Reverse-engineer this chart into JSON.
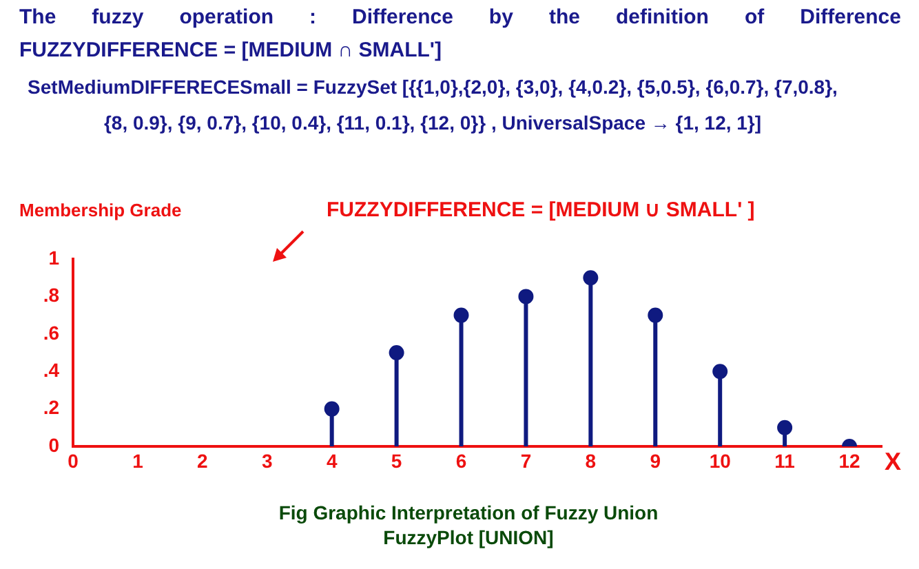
{
  "chart_data": {
    "type": "lollipop",
    "title": "FUZZYDIFFERENCE = [MEDIUM  ∪ SMALL' ]",
    "xlabel": "X",
    "ylabel": "Membership Grade",
    "annotations": [
      "The fuzzy operation : Difference by the definition of Difference",
      "FUZZYDIFFERENCE = [MEDIUM  ∩  SMALL']",
      "SetMediumDIFFERECESmall = FuzzySet [{{1,0},{2,0}, {3,0}, {4,0.2}, {5,0.5}, {6,0.7}, {7,0.8}, {8, 0.9}, {9, 0.7}, {10, 0.4}, {11, 0.1}, {12, 0}} ,  UniversalSpace → {1, 12, 1}]",
      "Fig Graphic Interpretation of Fuzzy Union",
      "FuzzyPlot [UNION]"
    ],
    "x": [
      4,
      5,
      6,
      7,
      8,
      9,
      10,
      11,
      12
    ],
    "values": [
      0.2,
      0.5,
      0.7,
      0.8,
      0.9,
      0.7,
      0.4,
      0.1,
      0
    ],
    "color": "#0f1a80",
    "marker": "circle",
    "xlim": [
      0,
      12.5
    ],
    "xticks": [
      0,
      1,
      2,
      3,
      4,
      5,
      6,
      7,
      8,
      9,
      10,
      11,
      12
    ],
    "ylim": [
      0,
      1
    ],
    "yticks": [
      {
        "value": 0,
        "label": "0"
      },
      {
        "value": 0.2,
        "label": ".2"
      },
      {
        "value": 0.4,
        "label": ".4"
      },
      {
        "value": 0.6,
        "label": ".6"
      },
      {
        "value": 0.8,
        "label": ".8"
      },
      {
        "value": 1,
        "label": "1"
      }
    ]
  }
}
